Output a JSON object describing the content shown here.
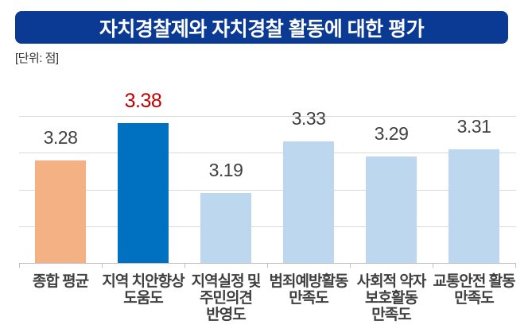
{
  "header": {
    "title": "자치경찰제와 자치경찰 활동에 대한 평가",
    "unit_label": "[단위: 점]"
  },
  "colors": {
    "banner_bg": "#0B3A94",
    "banner_text": "#FFFFFF",
    "unit_text": "#333333",
    "bar_average": "#F4B183",
    "bar_highlight": "#0070C0",
    "bar_default": "#BDD7EE",
    "value_text": "#404040",
    "value_highlight_text": "#C00000",
    "category_text": "#404040",
    "gridline": "#D9D9D9",
    "axis_line": "#BFBFBF"
  },
  "chart_data": {
    "type": "bar",
    "title": "자치경찰제와 자치경찰 활동에 대한 평가",
    "unit": "점",
    "categories": [
      "종합 평균",
      "지역 치안향상\n도움도",
      "지역실정 및\n주민의견\n반영도",
      "범죄예방활동\n만족도",
      "사회적 약자\n보호활동\n만족도",
      "교통안전 활동\n만족도"
    ],
    "values": [
      3.28,
      3.38,
      3.19,
      3.33,
      3.29,
      3.31
    ],
    "value_labels": [
      "3.28",
      "3.38",
      "3.19",
      "3.33",
      "3.29",
      "3.31"
    ],
    "bar_colors": [
      "#F4B183",
      "#0070C0",
      "#BDD7EE",
      "#BDD7EE",
      "#BDD7EE",
      "#BDD7EE"
    ],
    "value_label_colors": [
      "#404040",
      "#C00000",
      "#404040",
      "#404040",
      "#404040",
      "#404040"
    ],
    "highlight_index": 1,
    "ylim": [
      3.0,
      3.45
    ],
    "gridline_values": [
      3.1,
      3.2,
      3.3,
      3.4
    ],
    "grid": "horizontal",
    "legend": "none",
    "xlabel": "",
    "ylabel": ""
  }
}
